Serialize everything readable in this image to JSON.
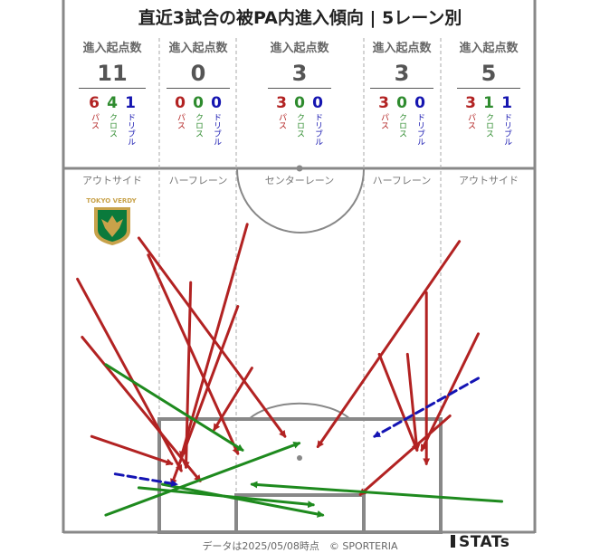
{
  "title": "直近3試合の被PA内進入傾向 | 5レーン別",
  "header_label": "進入起点数",
  "kind_labels": {
    "pass": "パス",
    "cross": "クロス",
    "dribble": "ドリブル"
  },
  "lanes": [
    {
      "name": "アウトサイド",
      "total": "11",
      "pass": "6",
      "cross": "4",
      "dribble": "1"
    },
    {
      "name": "ハーフレーン",
      "total": "0",
      "pass": "0",
      "cross": "0",
      "dribble": "0"
    },
    {
      "name": "センターレーン",
      "total": "3",
      "pass": "3",
      "cross": "0",
      "dribble": "0"
    },
    {
      "name": "ハーフレーン",
      "total": "3",
      "pass": "3",
      "cross": "0",
      "dribble": "0"
    },
    {
      "name": "アウトサイド",
      "total": "5",
      "pass": "3",
      "cross": "1",
      "dribble": "1"
    }
  ],
  "team_logo": {
    "text": "TOKYO VERDY",
    "colors": [
      "#0a7a3c",
      "#c8a24a"
    ]
  },
  "colors": {
    "pass": "#b22222",
    "cross": "#1e8a1e",
    "dribble": "#1414b4",
    "pitch_line": "#888888"
  },
  "footer": "データは2025/05/08時点　© SPORTERIA",
  "brand": "STATs",
  "chart_data": {
    "type": "arrow-map",
    "title": "直近3試合の被PA内進入傾向 | 5レーン別",
    "legend": {
      "pass": "パス",
      "cross": "クロス",
      "dribble": "ドリブル"
    },
    "coordinate_note": "x: 0=left touchline, 100=right touchline; y: 0=top edge of area shown, 100=goal line",
    "arrows": [
      {
        "kind": "pass",
        "from": [
          16,
          14
        ],
        "to": [
          47,
          72
        ]
      },
      {
        "kind": "pass",
        "from": [
          18,
          19
        ],
        "to": [
          37,
          77
        ]
      },
      {
        "kind": "pass",
        "from": [
          3,
          26
        ],
        "to": [
          25,
          82
        ]
      },
      {
        "kind": "pass",
        "from": [
          4,
          43
        ],
        "to": [
          29,
          85
        ]
      },
      {
        "kind": "pass",
        "from": [
          6,
          72
        ],
        "to": [
          23,
          80
        ]
      },
      {
        "kind": "pass",
        "from": [
          27,
          27
        ],
        "to": [
          26,
          81
        ]
      },
      {
        "kind": "pass",
        "from": [
          39,
          10
        ],
        "to": [
          25,
          78
        ]
      },
      {
        "kind": "pass",
        "from": [
          37,
          34
        ],
        "to": [
          23,
          86
        ]
      },
      {
        "kind": "pass",
        "from": [
          40,
          52
        ],
        "to": [
          32,
          70
        ]
      },
      {
        "kind": "pass",
        "from": [
          84,
          15
        ],
        "to": [
          54,
          75
        ]
      },
      {
        "kind": "pass",
        "from": [
          77,
          30
        ],
        "to": [
          77,
          80
        ]
      },
      {
        "kind": "pass",
        "from": [
          67,
          48
        ],
        "to": [
          75,
          76
        ]
      },
      {
        "kind": "pass",
        "from": [
          73,
          48
        ],
        "to": [
          75,
          76
        ]
      },
      {
        "kind": "pass",
        "from": [
          88,
          42
        ],
        "to": [
          76,
          76
        ]
      },
      {
        "kind": "pass",
        "from": [
          82,
          66
        ],
        "to": [
          63,
          89
        ]
      },
      {
        "kind": "cross",
        "from": [
          9,
          51
        ],
        "to": [
          38,
          76
        ]
      },
      {
        "kind": "cross",
        "from": [
          9,
          95
        ],
        "to": [
          50,
          74
        ]
      },
      {
        "kind": "cross",
        "from": [
          16,
          87
        ],
        "to": [
          53,
          92
        ]
      },
      {
        "kind": "cross",
        "from": [
          93,
          91
        ],
        "to": [
          40,
          86
        ]
      },
      {
        "kind": "cross",
        "from": [
          21,
          86
        ],
        "to": [
          55,
          95
        ]
      },
      {
        "kind": "dribble",
        "from": [
          11,
          83
        ],
        "to": [
          24,
          86
        ]
      },
      {
        "kind": "dribble",
        "from": [
          88,
          55
        ],
        "to": [
          66,
          72
        ]
      }
    ]
  }
}
